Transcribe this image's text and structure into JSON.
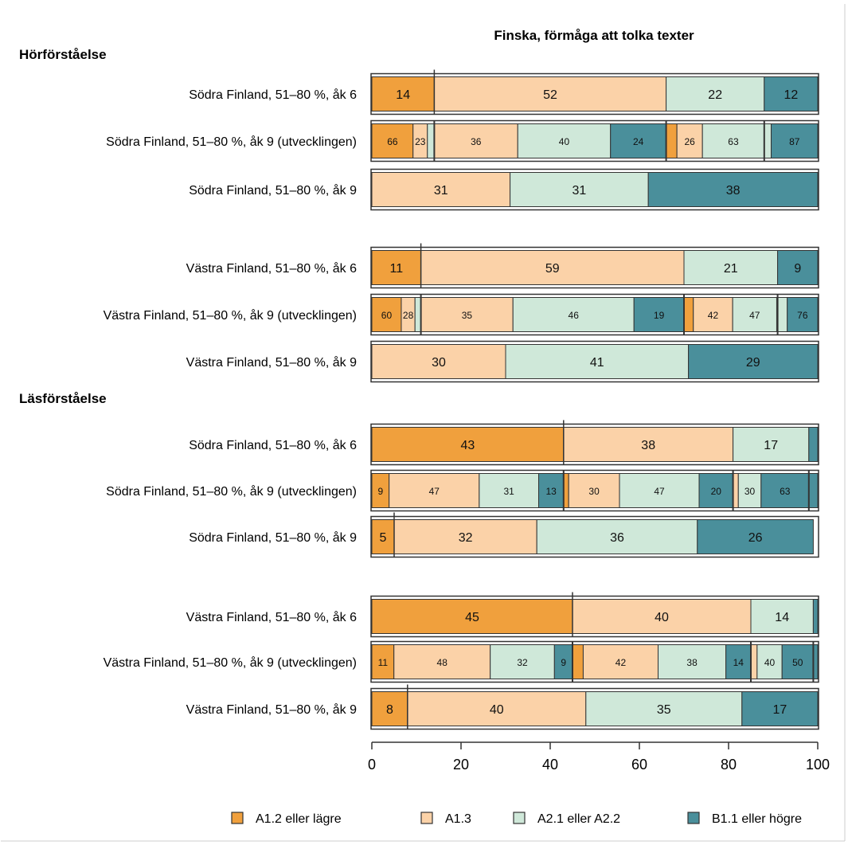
{
  "chart_data": {
    "type": "bar",
    "orientation": "horizontal",
    "stacked": true,
    "title": "Finska, förmåga att tolka texter",
    "xlim": [
      0,
      100
    ],
    "xticks": [
      0,
      20,
      40,
      60,
      80,
      100
    ],
    "legend_position": "bottom",
    "colors": {
      "A1.2 eller lägre": "#f0a03d",
      "A1.3": "#fbd2a8",
      "A2.1 eller A2.2": "#cfe8d9",
      "B1.1 eller högre": "#4a8f9b",
      "border": "#333333"
    },
    "levels": [
      "A1.2 eller lägre",
      "A1.3",
      "A2.1 eller A2.2",
      "B1.1 eller högre"
    ],
    "sections": [
      {
        "title": "Hörförståelse",
        "rows": [
          {
            "label": "Södra Finland, 51–80 %, åk 6",
            "kind": "main",
            "values": [
              14,
              52,
              22,
              12
            ]
          },
          {
            "label": "Södra Finland, 51–80 %, åk 9 (utvecklingen)",
            "kind": "dev",
            "groups": [
              {
                "values": [
                  66,
                  23,
                  11,
                  0
                ]
              },
              {
                "values": [
                  0,
                  36,
                  40,
                  24
                ]
              },
              {
                "values": [
                  11,
                  26,
                  63,
                  0
                ]
              },
              {
                "values": [
                  0,
                  0,
                  13,
                  87
                ]
              }
            ]
          },
          {
            "label": "Södra Finland, 51–80 %, åk 9",
            "kind": "main",
            "values": [
              0,
              31,
              31,
              38
            ]
          },
          {
            "label": "Västra Finland, 51–80 %, åk 6",
            "kind": "main",
            "values": [
              11,
              59,
              21,
              9
            ]
          },
          {
            "label": "Västra Finland, 51–80 %, åk 9 (utvecklingen)",
            "kind": "dev",
            "groups": [
              {
                "values": [
                  60,
                  28,
                  12,
                  0
                ]
              },
              {
                "values": [
                  0,
                  35,
                  46,
                  19
                ]
              },
              {
                "values": [
                  10,
                  42,
                  47,
                  0
                ]
              },
              {
                "values": [
                  0,
                  0,
                  24,
                  76
                ]
              }
            ]
          },
          {
            "label": "Västra Finland, 51–80 %, åk 9",
            "kind": "main",
            "values": [
              0,
              30,
              41,
              29
            ]
          }
        ]
      },
      {
        "title": "Läsförståelse",
        "rows": [
          {
            "label": "Södra Finland, 51–80 %, åk 6",
            "kind": "main",
            "values": [
              43,
              38,
              17,
              2
            ]
          },
          {
            "label": "Södra Finland, 51–80 %, åk 9 (utvecklingen)",
            "kind": "dev",
            "groups": [
              {
                "values": [
                  9,
                  47,
                  31,
                  13
                ]
              },
              {
                "values": [
                  3,
                  30,
                  47,
                  20
                ]
              },
              {
                "values": [
                  0,
                  7,
                  30,
                  63
                ]
              },
              {
                "values": [
                  0,
                  0,
                  0,
                  100
                ]
              }
            ]
          },
          {
            "label": "Södra Finland, 51–80 %, åk 9",
            "kind": "main",
            "values": [
              5,
              32,
              36,
              26
            ]
          },
          {
            "label": "Västra Finland, 51–80 %, åk 6",
            "kind": "main",
            "values": [
              45,
              40,
              14,
              1
            ]
          },
          {
            "label": "Västra Finland, 51–80 %, åk 9 (utvecklingen)",
            "kind": "dev",
            "groups": [
              {
                "values": [
                  11,
                  48,
                  32,
                  9
                ]
              },
              {
                "values": [
                  6,
                  42,
                  38,
                  14
                ]
              },
              {
                "values": [
                  0,
                  10,
                  40,
                  50
                ]
              },
              {
                "values": [
                  0,
                  0,
                  0,
                  100
                ]
              }
            ]
          },
          {
            "label": "Västra Finland, 51–80 %, åk 9",
            "kind": "main",
            "values": [
              8,
              40,
              35,
              17
            ]
          }
        ]
      }
    ]
  }
}
